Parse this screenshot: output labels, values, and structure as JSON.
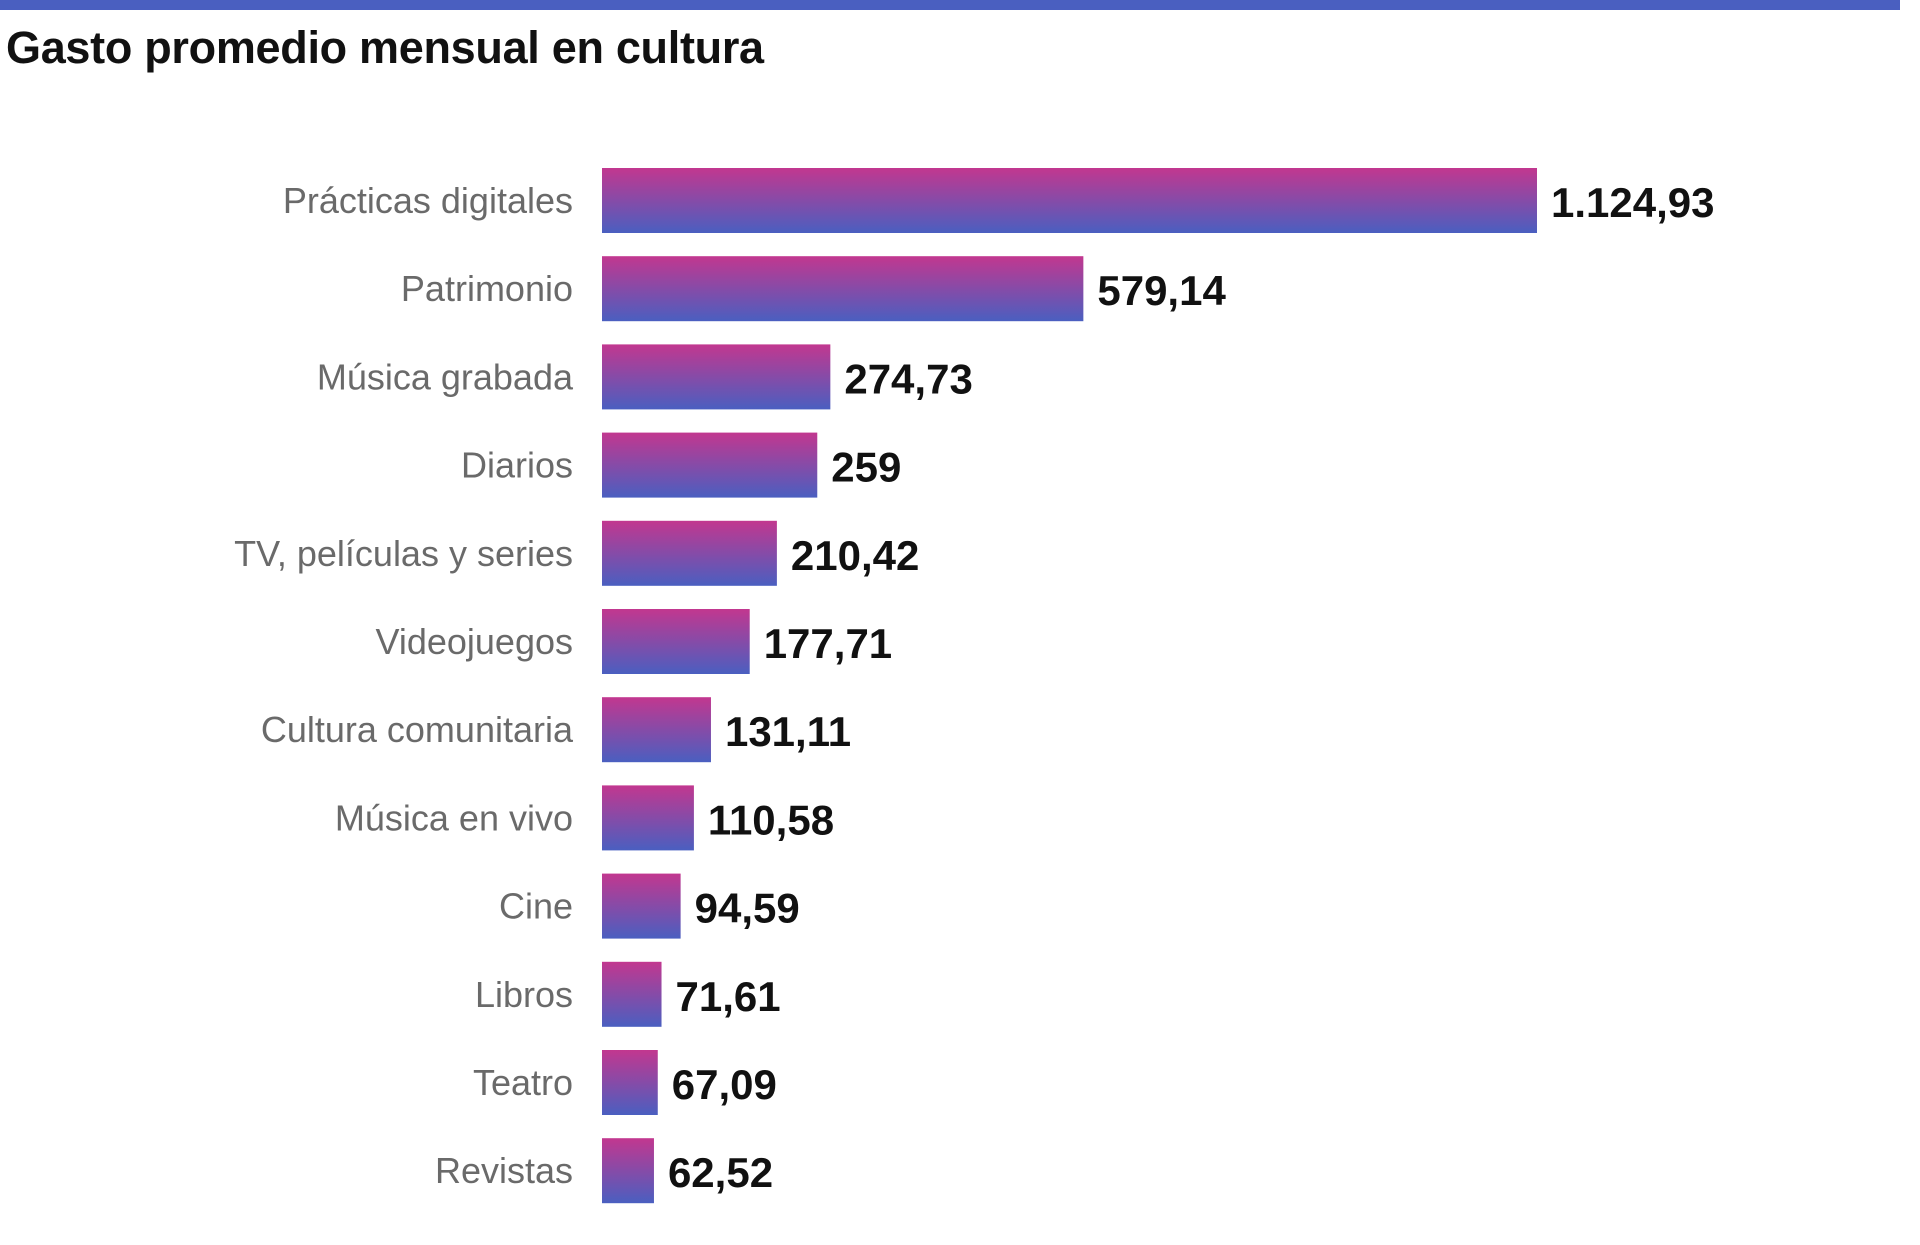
{
  "title": "Gasto promedio mensual en cultura",
  "colors": {
    "top_rule": "#4a5fc0",
    "bar_top": "#c2378f",
    "bar_bottom": "#4a5fc0",
    "category_text": "#6a6a6a",
    "value_text": "#111111"
  },
  "chart_data": {
    "type": "bar",
    "orientation": "horizontal",
    "title": "Gasto promedio mensual en cultura",
    "xlabel": "",
    "ylabel": "",
    "grid": false,
    "legend": "none",
    "xlim": [
      0,
      1124.93
    ],
    "categories": [
      "Prácticas digitales",
      "Patrimonio",
      "Música grabada",
      "Diarios",
      "TV, películas y series",
      "Videojuegos",
      "Cultura comunitaria",
      "Música en vivo",
      "Cine",
      "Libros",
      "Teatro",
      "Revistas"
    ],
    "values": [
      1124.93,
      579.14,
      274.73,
      259,
      210.42,
      177.71,
      131.11,
      110.58,
      94.59,
      71.61,
      67.09,
      62.52
    ],
    "value_labels": [
      "1.124,93",
      "579,14",
      "274,73",
      "259",
      "210,42",
      "177,71",
      "131,11",
      "110,58",
      "94,59",
      "71,61",
      "67,09",
      "62,52"
    ]
  }
}
